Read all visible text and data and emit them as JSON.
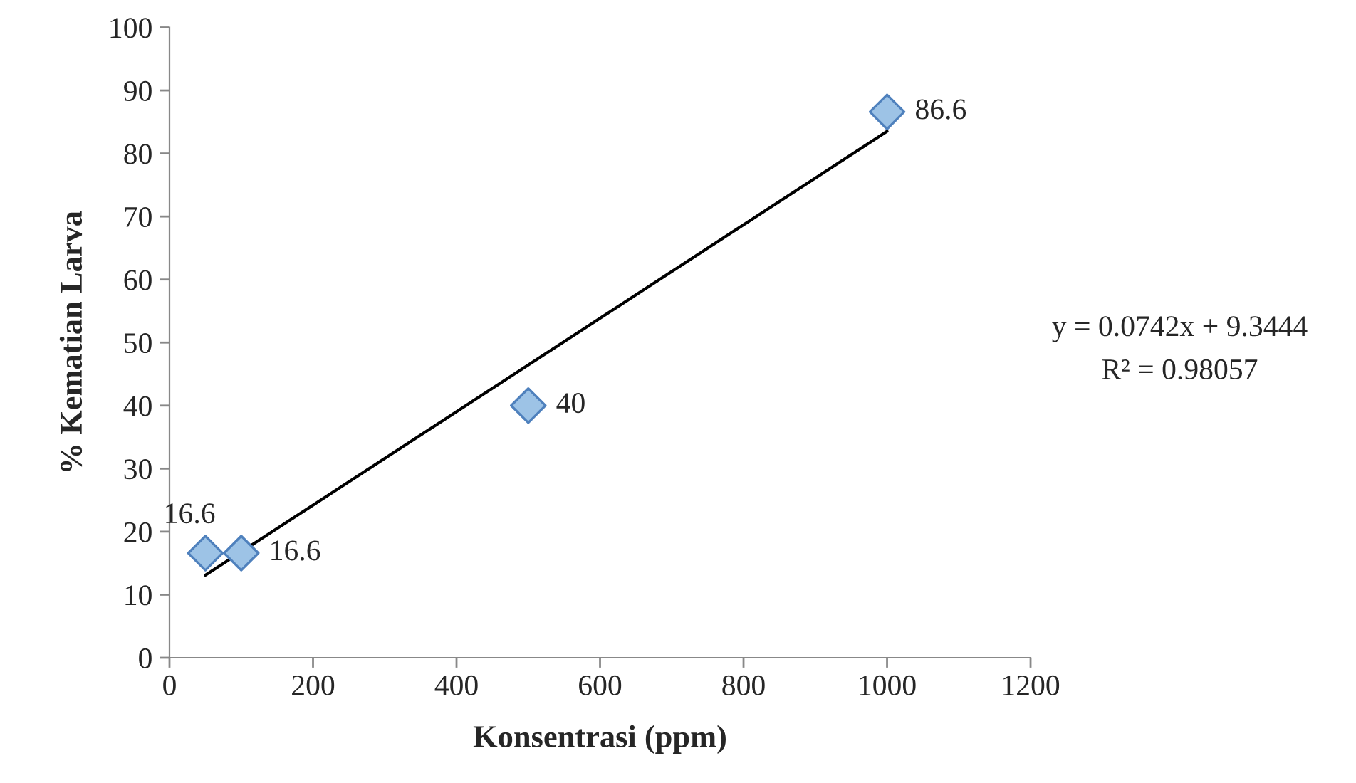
{
  "chart_data": {
    "type": "scatter",
    "xlabel": "Konsentrasi (ppm)",
    "ylabel": "% Kematian Larva",
    "xlim": [
      0,
      1200
    ],
    "xticks": [
      0,
      200,
      400,
      600,
      800,
      1000,
      1200
    ],
    "ylim": [
      0,
      100
    ],
    "yticks": [
      0,
      10,
      20,
      30,
      40,
      50,
      60,
      70,
      80,
      90,
      100
    ],
    "grid": false,
    "legend": false,
    "marker": "diamond",
    "series": [
      {
        "color": "#9dc3e6",
        "x": [
          50,
          100,
          500,
          1000
        ],
        "values": [
          16.6,
          16.6,
          40,
          86.6
        ],
        "value_labels": [
          "16.6",
          "16.6",
          "40",
          "86.6"
        ]
      },
      {
        "type": "line",
        "color": "#000000",
        "x": [
          50,
          1000
        ],
        "values": [
          13.1,
          83.5
        ],
        "line_style": "solid",
        "marker": "none"
      }
    ],
    "annotations": [
      "y = 0.0742x + 9.3444",
      "R² = 0.98057"
    ]
  }
}
